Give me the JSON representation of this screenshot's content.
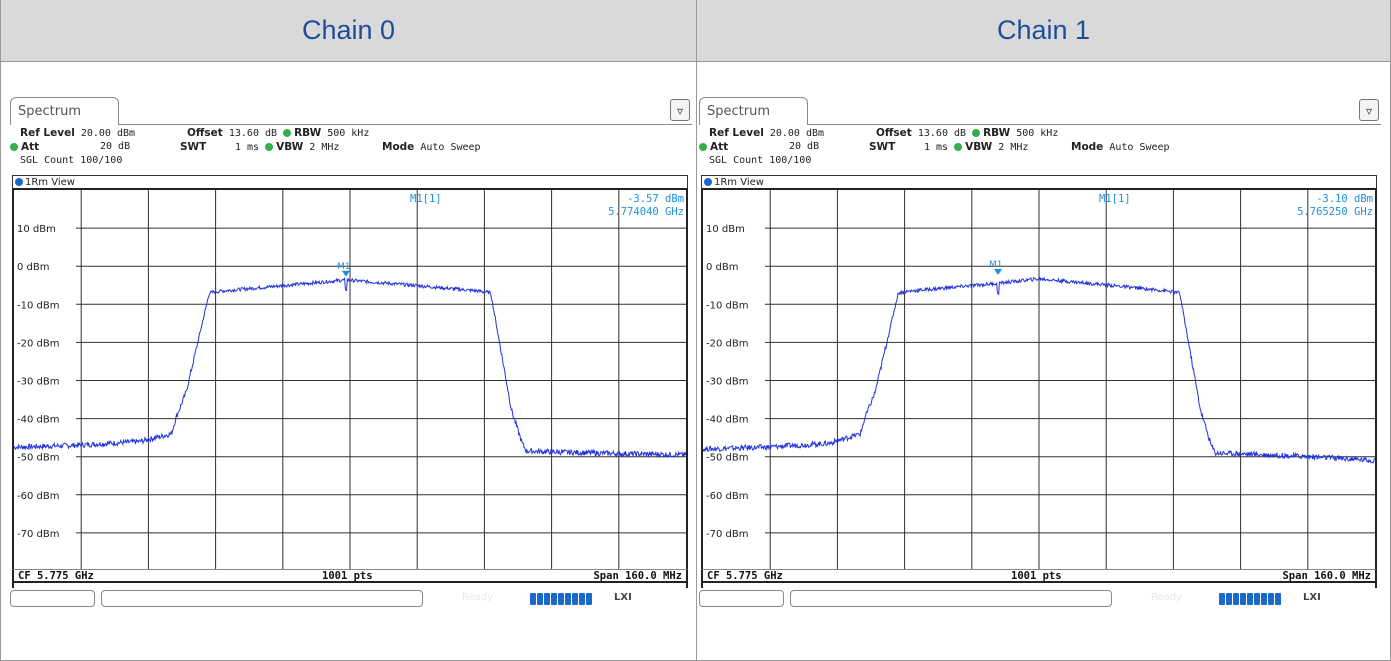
{
  "chart_data": [
    {
      "type": "line",
      "title": "Chain 0",
      "tab": "Spectrum",
      "ref_level": "20.00 dBm",
      "offset": "13.60 dB",
      "rbw": "500 kHz",
      "att": "20 dB",
      "swt": "1 ms",
      "vbw": "2 MHz",
      "mode": "Auto Sweep",
      "sgl_count": "SGL Count 100/100",
      "view": "1Rm View",
      "marker": {
        "label": "M1[1]",
        "level": "-3.57 dBm",
        "freq": "5.774040 GHz",
        "x": 5.77404,
        "y": -3.57,
        "tag": "M1"
      },
      "yticks": [
        "10 dBm",
        "0 dBm",
        "-10 dBm",
        "-20 dBm",
        "-30 dBm",
        "-40 dBm",
        "-50 dBm",
        "-60 dBm",
        "-70 dBm"
      ],
      "ytick_values": [
        10,
        0,
        -10,
        -20,
        -30,
        -40,
        -50,
        -60,
        -70
      ],
      "ylim": [
        -80,
        20
      ],
      "xlim": [
        5.695,
        5.855
      ],
      "footer_left": "CF 5.775 GHz",
      "footer_center": "1001 pts",
      "footer_right": "Span 160.0 MHz",
      "status_ready": "Ready",
      "status_lxi": "LXI",
      "series": [
        {
          "name": "",
          "x": [
            5.695,
            5.71,
            5.725,
            5.7325,
            5.7335,
            5.736,
            5.7415,
            5.7445,
            5.76,
            5.774,
            5.79,
            5.8055,
            5.8085,
            5.8135,
            5.816,
            5.817,
            5.825,
            5.84,
            5.855
          ],
          "y": [
            -47.5,
            -47,
            -46,
            -44,
            -40,
            -33,
            -7,
            -6.5,
            -5,
            -3.6,
            -5,
            -6.5,
            -7,
            -38,
            -46.5,
            -48.5,
            -48.8,
            -49.2,
            -49.5
          ]
        }
      ]
    },
    {
      "type": "line",
      "title": "Chain 1",
      "tab": "Spectrum",
      "ref_level": "20.00 dBm",
      "offset": "13.60 dB",
      "rbw": "500 kHz",
      "att": "20 dB",
      "swt": "1 ms",
      "vbw": "2 MHz",
      "mode": "Auto Sweep",
      "sgl_count": "SGL Count 100/100",
      "view": "1Rm View",
      "marker": {
        "label": "M1[1]",
        "level": "-3.10 dBm",
        "freq": "5.765250 GHz",
        "x": 5.76525,
        "y": -3.1,
        "tag": "M1"
      },
      "yticks": [
        "10 dBm",
        "0 dBm",
        "-10 dBm",
        "-20 dBm",
        "-30 dBm",
        "-40 dBm",
        "-50 dBm",
        "-60 dBm",
        "-70 dBm"
      ],
      "ytick_values": [
        10,
        0,
        -10,
        -20,
        -30,
        -40,
        -50,
        -60,
        -70
      ],
      "ylim": [
        -80,
        20
      ],
      "xlim": [
        5.695,
        5.855
      ],
      "footer_left": "CF 5.775 GHz",
      "footer_center": "1001 pts",
      "footer_right": "Span 160.0 MHz",
      "status_ready": "Ready",
      "status_lxi": "LXI",
      "series": [
        {
          "name": "",
          "x": [
            5.695,
            5.71,
            5.725,
            5.7325,
            5.7335,
            5.736,
            5.7415,
            5.7445,
            5.765,
            5.775,
            5.79,
            5.8055,
            5.8085,
            5.8135,
            5.816,
            5.817,
            5.825,
            5.84,
            5.855
          ],
          "y": [
            -48,
            -47.5,
            -46.5,
            -44,
            -40,
            -33,
            -7,
            -6.5,
            -4.5,
            -3.3,
            -4.8,
            -6.5,
            -7,
            -38,
            -47,
            -49,
            -49.3,
            -50,
            -51
          ]
        }
      ]
    }
  ]
}
